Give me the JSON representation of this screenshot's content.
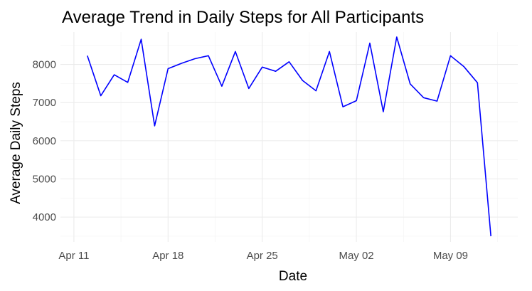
{
  "chart_data": {
    "type": "line",
    "title": "Average Trend in Daily Steps for All Participants",
    "xlabel": "Date",
    "ylabel": "Average Daily Steps",
    "x_tick_labels": [
      "Apr 11",
      "Apr 18",
      "Apr 25",
      "May 02",
      "May 09"
    ],
    "x_tick_dates": [
      "2016-04-11",
      "2016-04-18",
      "2016-04-25",
      "2016-05-02",
      "2016-05-09"
    ],
    "y_ticks": [
      4000,
      5000,
      6000,
      7000,
      8000
    ],
    "xlim": [
      "2016-04-10",
      "2016-05-14"
    ],
    "ylim": [
      3350,
      8850
    ],
    "grid": true,
    "legend": "none",
    "line_color": "#0000ff",
    "series": [
      {
        "x": [
          "2016-04-12",
          "2016-04-13",
          "2016-04-14",
          "2016-04-15",
          "2016-04-16",
          "2016-04-17",
          "2016-04-18",
          "2016-04-19",
          "2016-04-20",
          "2016-04-21",
          "2016-04-22",
          "2016-04-23",
          "2016-04-24",
          "2016-04-25",
          "2016-04-26",
          "2016-04-27",
          "2016-04-28",
          "2016-04-29",
          "2016-04-30",
          "2016-05-01",
          "2016-05-02",
          "2016-05-03",
          "2016-05-04",
          "2016-05-05",
          "2016-05-06",
          "2016-05-07",
          "2016-05-08",
          "2016-05-09",
          "2016-05-10",
          "2016-05-11",
          "2016-05-12"
        ],
        "values": [
          8230,
          7180,
          7730,
          7530,
          8660,
          6390,
          7890,
          8030,
          8150,
          8230,
          7430,
          8340,
          7370,
          7930,
          7820,
          8070,
          7580,
          7310,
          8340,
          6890,
          7050,
          8560,
          6760,
          8720,
          7490,
          7130,
          7040,
          8230,
          7940,
          7520,
          3500
        ]
      }
    ]
  }
}
